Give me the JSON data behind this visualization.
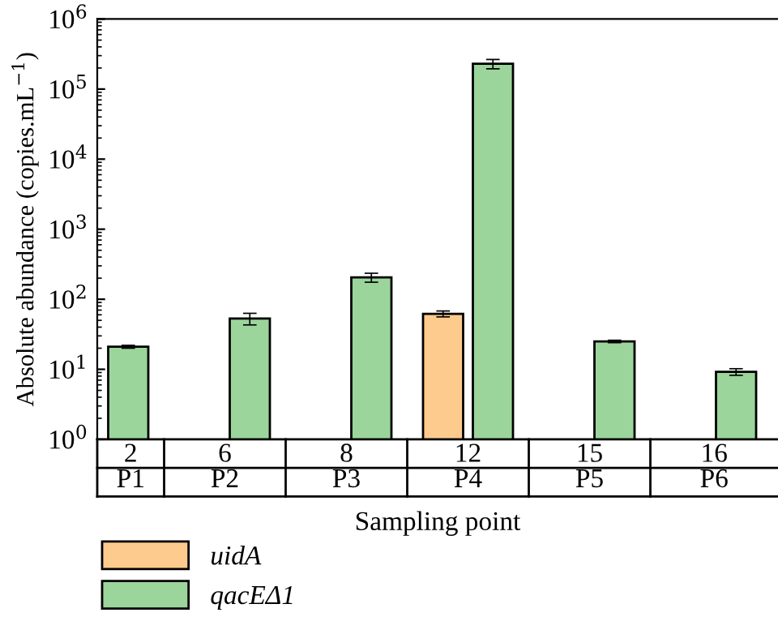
{
  "chart_data": {
    "type": "bar",
    "ylabel": "Absolute abundance (copies.mL$^{−1}$)",
    "xlabel": "Sampling point",
    "categories": [
      "2\nP1",
      "6\nP2",
      "8\nP3",
      "12\nP4",
      "15\nP5",
      "16\nP6"
    ],
    "series": [
      {
        "name": "uidA",
        "color": "#fdcb8d",
        "values": [
          null,
          null,
          null,
          62,
          null,
          null
        ],
        "errors": [
          null,
          null,
          null,
          6,
          null,
          null
        ]
      },
      {
        "name": "qacEΔ1",
        "color": "#9bd59b",
        "values": [
          21,
          53,
          205,
          230000,
          25,
          9.2
        ],
        "errors": [
          1,
          10,
          30,
          35000,
          1,
          1
        ]
      }
    ],
    "log": "y",
    "ylim": [
      1,
      1000000
    ],
    "yticks": [
      {
        "value": 1,
        "label": "10$^{0}$"
      },
      {
        "value": 10,
        "label": "10$^{1}$"
      },
      {
        "value": 100,
        "label": "10$^{2}$"
      },
      {
        "value": 1000,
        "label": "10$^{3}$"
      },
      {
        "value": 10000,
        "label": "10$^{4}$"
      },
      {
        "value": 100000,
        "label": "10$^{5}$"
      },
      {
        "value": 1000000,
        "label": "10$^{6}$"
      }
    ],
    "grid": false,
    "legend": "bottom left"
  }
}
